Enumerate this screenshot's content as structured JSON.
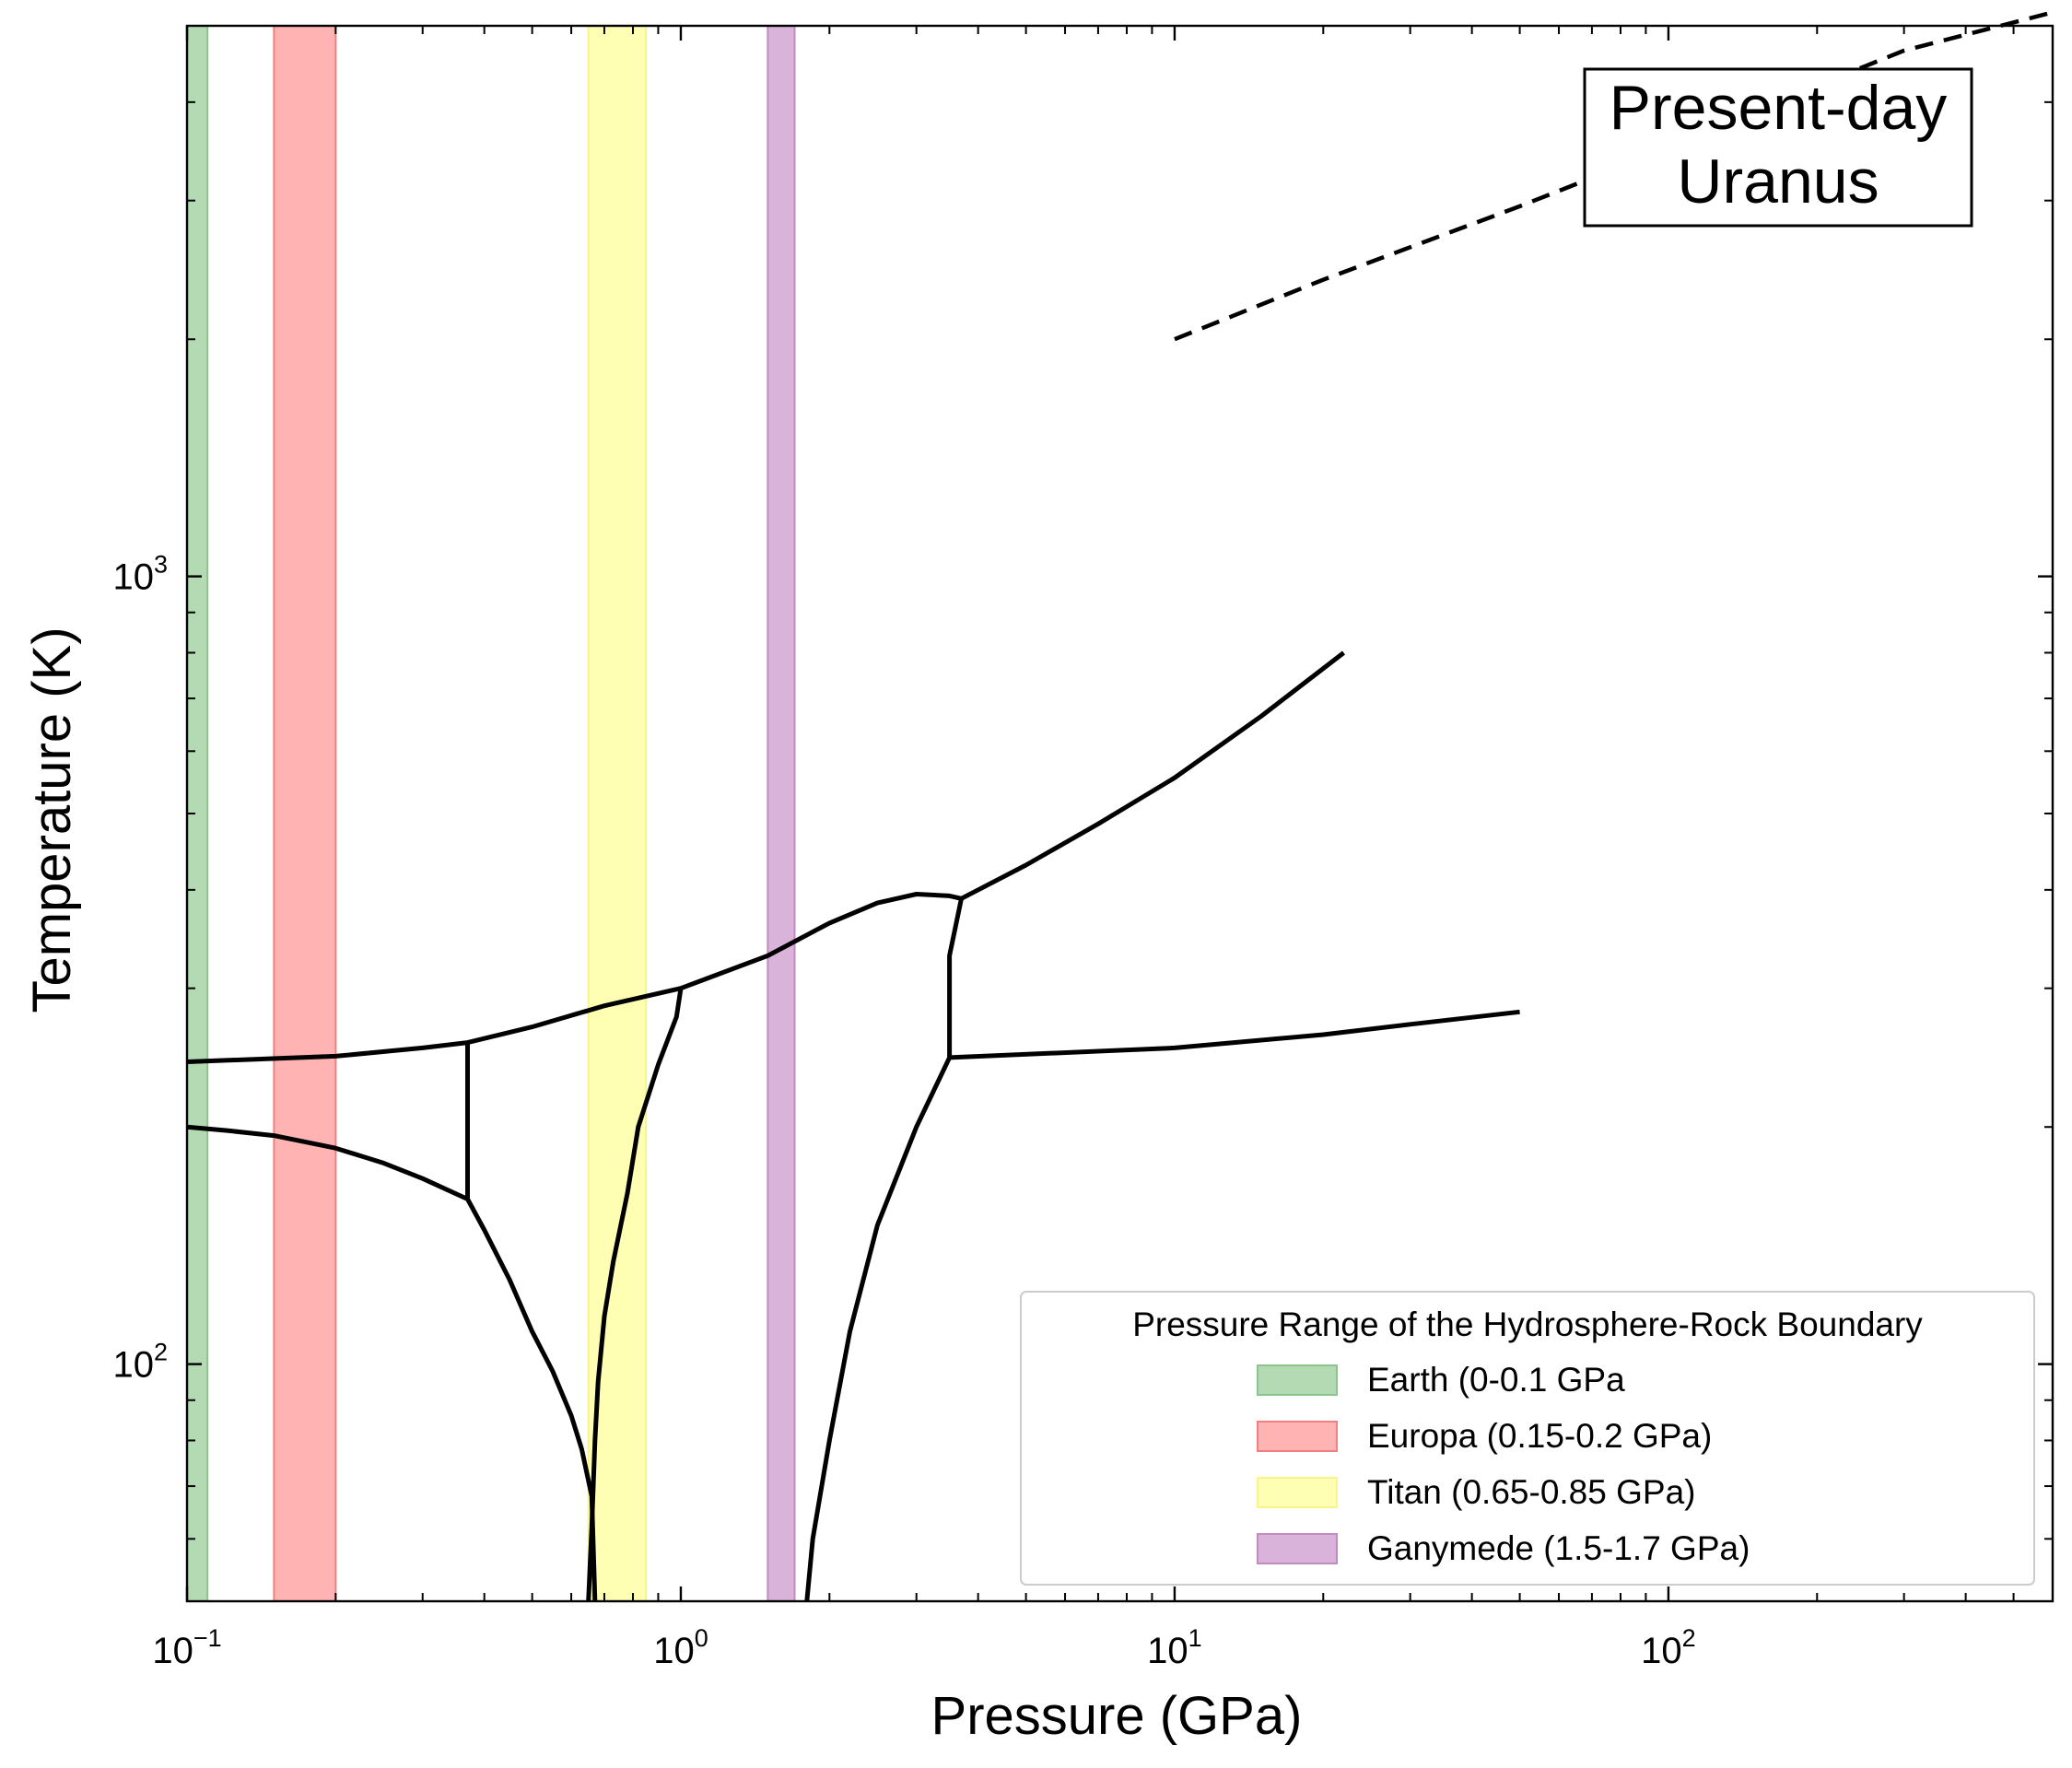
{
  "chart_data": {
    "type": "line",
    "xlabel": "Pressure (GPa)",
    "ylabel": "Temperature (K)",
    "xscale": "log",
    "yscale": "log",
    "xlim": [
      0.1,
      600
    ],
    "ylim": [
      50,
      5000
    ],
    "grid": false,
    "x_ticks": [
      {
        "value": 0.1,
        "base": "10",
        "exp": "−1"
      },
      {
        "value": 1,
        "base": "10",
        "exp": "0"
      },
      {
        "value": 10,
        "base": "10",
        "exp": "1"
      },
      {
        "value": 100,
        "base": "10",
        "exp": "2"
      }
    ],
    "y_ticks": [
      {
        "value": 100,
        "base": "10",
        "exp": "2"
      },
      {
        "value": 1000,
        "base": "10",
        "exp": "3"
      }
    ],
    "bands": [
      {
        "label": "Earth (0-0.1 GPa",
        "xmin": 0.1,
        "xmax": 0.11,
        "color": "#b3dab3",
        "edge": "#8cc48c"
      },
      {
        "label": "Europa (0.15-0.2 GPa)",
        "xmin": 0.15,
        "xmax": 0.2,
        "color": "#ffb3b3",
        "edge": "#f08080"
      },
      {
        "label": "Titan (0.65-0.85 GPa)",
        "xmin": 0.65,
        "xmax": 0.85,
        "color": "#ffffb3",
        "edge": "#f5f58c"
      },
      {
        "label": "Ganymede (1.5-1.7 GPa)",
        "xmin": 1.5,
        "xmax": 1.7,
        "color": "#d9b3d9",
        "edge": "#c08cc0"
      }
    ],
    "legend": {
      "title": "Pressure Range of the Hydrosphere-Rock Boundary",
      "location": "lower-right"
    },
    "annotation": {
      "lines": [
        "Present-day",
        "Uranus"
      ]
    },
    "series": [
      {
        "style": "solid",
        "points": [
          [
            0.1,
            242
          ],
          [
            0.2,
            246
          ],
          [
            0.3,
            252
          ],
          [
            0.37,
            256
          ],
          [
            0.5,
            268
          ],
          [
            0.7,
            285
          ],
          [
            1.0,
            300
          ],
          [
            1.5,
            330
          ],
          [
            2.0,
            363
          ],
          [
            2.5,
            385
          ],
          [
            3.0,
            395
          ],
          [
            3.5,
            393
          ],
          [
            3.7,
            390
          ]
        ]
      },
      {
        "style": "solid",
        "points": [
          [
            3.7,
            390
          ],
          [
            5,
            430
          ],
          [
            7,
            485
          ],
          [
            10,
            555
          ],
          [
            15,
            665
          ],
          [
            22,
            800
          ]
        ]
      },
      {
        "style": "solid",
        "points": [
          [
            0.1,
            200
          ],
          [
            0.12,
            198
          ],
          [
            0.15,
            195
          ],
          [
            0.2,
            188
          ],
          [
            0.25,
            180
          ],
          [
            0.3,
            172
          ],
          [
            0.37,
            162
          ],
          [
            0.4,
            148
          ],
          [
            0.45,
            128
          ],
          [
            0.5,
            110
          ],
          [
            0.55,
            98
          ],
          [
            0.6,
            86
          ],
          [
            0.63,
            78
          ],
          [
            0.66,
            68
          ],
          [
            0.67,
            50
          ]
        ]
      },
      {
        "style": "solid",
        "points": [
          [
            0.37,
            256
          ],
          [
            0.37,
            162
          ]
        ]
      },
      {
        "style": "solid",
        "points": [
          [
            1.0,
            300
          ],
          [
            0.98,
            276
          ],
          [
            0.9,
            240
          ],
          [
            0.82,
            200
          ],
          [
            0.78,
            165
          ],
          [
            0.73,
            135
          ],
          [
            0.7,
            115
          ],
          [
            0.68,
            95
          ],
          [
            0.67,
            80
          ],
          [
            0.66,
            62
          ],
          [
            0.65,
            50
          ]
        ]
      },
      {
        "style": "solid",
        "points": [
          [
            3.7,
            390
          ],
          [
            3.5,
            330
          ],
          [
            3.5,
            245
          ]
        ]
      },
      {
        "style": "solid",
        "points": [
          [
            3.5,
            245
          ],
          [
            3.0,
            200
          ],
          [
            2.5,
            150
          ],
          [
            2.2,
            110
          ],
          [
            2.0,
            80
          ],
          [
            1.85,
            60
          ],
          [
            1.8,
            50
          ]
        ]
      },
      {
        "style": "solid",
        "points": [
          [
            3.5,
            245
          ],
          [
            10,
            252
          ],
          [
            20,
            262
          ],
          [
            30,
            270
          ],
          [
            50,
            280
          ]
        ]
      },
      {
        "style": "dashed",
        "points": [
          [
            10,
            2000
          ],
          [
            20,
            2380
          ],
          [
            50,
            2950
          ],
          [
            100,
            3500
          ],
          [
            200,
            4200
          ],
          [
            300,
            4650
          ],
          [
            600,
            5200
          ]
        ]
      }
    ]
  }
}
